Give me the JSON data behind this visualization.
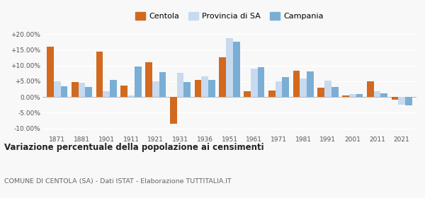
{
  "years": [
    1871,
    1881,
    1901,
    1911,
    1921,
    1931,
    1936,
    1951,
    1961,
    1971,
    1981,
    1991,
    2001,
    2011,
    2021
  ],
  "centola": [
    16.0,
    4.7,
    14.3,
    3.5,
    11.0,
    -8.6,
    5.5,
    12.5,
    1.7,
    2.0,
    8.3,
    2.9,
    0.4,
    5.0,
    -0.8
  ],
  "provincia_sa": [
    5.0,
    4.6,
    1.8,
    0.5,
    5.0,
    7.7,
    6.5,
    18.6,
    9.0,
    5.0,
    5.9,
    5.2,
    1.0,
    1.7,
    -2.5
  ],
  "campania": [
    3.3,
    3.1,
    5.5,
    9.7,
    7.8,
    4.8,
    5.3,
    17.5,
    9.5,
    6.3,
    8.0,
    3.2,
    0.9,
    1.1,
    -2.8
  ],
  "color_centola": "#d2691e",
  "color_provincia": "#c8daf0",
  "color_campania": "#7aaed4",
  "title": "Variazione percentuale della popolazione ai censimenti",
  "subtitle": "COMUNE DI CENTOLA (SA) - Dati ISTAT - Elaborazione TUTTITALIA.IT",
  "ylim": [
    -12,
    22
  ],
  "yticks": [
    -10,
    -5,
    0,
    5,
    10,
    15,
    20
  ],
  "background_color": "#f8f8f8"
}
